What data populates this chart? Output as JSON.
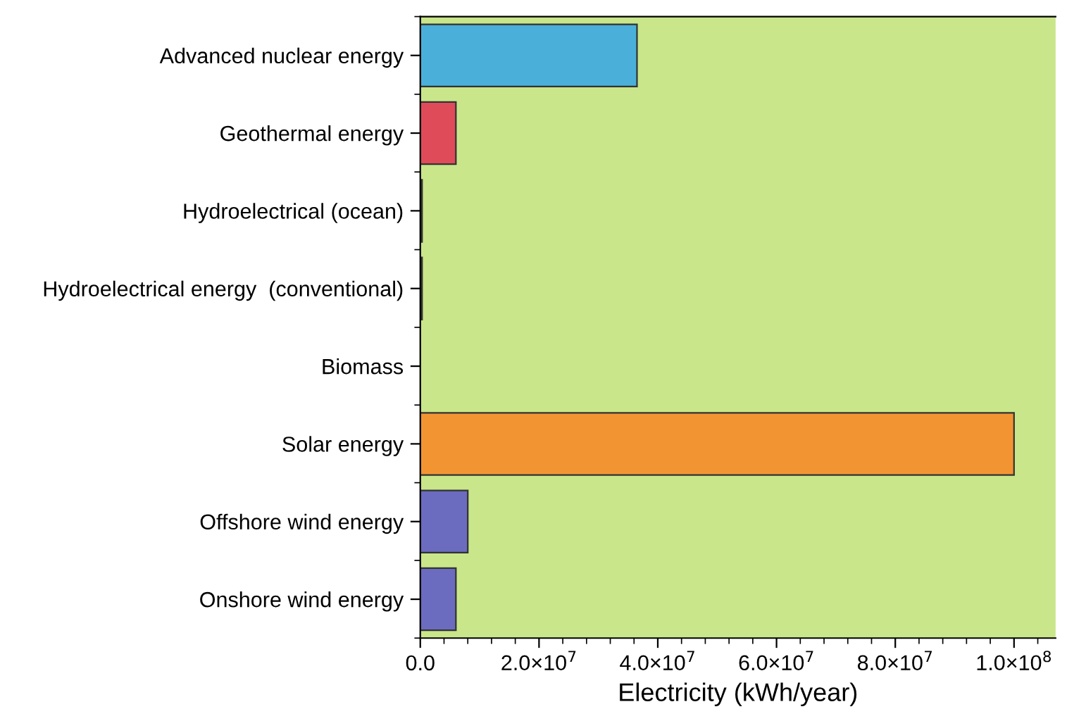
{
  "chart_data": {
    "type": "bar",
    "orientation": "horizontal",
    "xlabel": "Electricity (kWh/year)",
    "categories": [
      "Advanced nuclear energy",
      "Geothermal energy",
      "Hydroelectrical (ocean)",
      "Hydroelectrical energy  (conventional)",
      "Biomass",
      "Solar energy",
      "Offshore wind energy",
      "Onshore wind energy"
    ],
    "values": [
      36500000,
      6000000,
      300000,
      300000,
      null,
      100000000,
      8000000,
      6000000
    ],
    "colors": [
      "#4ab0d9",
      "#e04b5a",
      "#333333",
      "#333333",
      "#333333",
      "#f39433",
      "#6b6bbf",
      "#6b6bbf"
    ],
    "xlim": [
      0,
      107000000
    ],
    "xticks": [
      {
        "value": 0,
        "label": "0.0"
      },
      {
        "value": 20000000,
        "label": "2.0×10$^{7}$"
      },
      {
        "value": 40000000,
        "label": "4.0×10$^{7}$"
      },
      {
        "value": 60000000,
        "label": "6.0×10$^{7}$"
      },
      {
        "value": 80000000,
        "label": "8.0×10$^{7}$"
      },
      {
        "value": 100000000,
        "label": "1.0×10$^{8}$"
      }
    ],
    "grid": false,
    "legend": false
  }
}
